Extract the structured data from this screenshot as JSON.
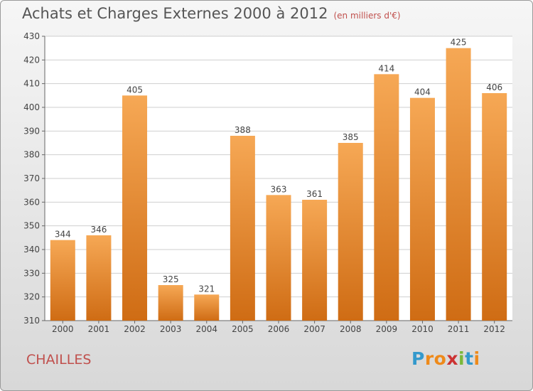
{
  "title": "Achats et Charges Externes 2000 à 2012",
  "subtitle": "(en milliers d'€)",
  "city": "CHAILLES",
  "logo": {
    "letters": [
      "P",
      "r",
      "o",
      "x",
      "i",
      "t",
      "i"
    ],
    "colors": [
      "#3399cc",
      "#ee8a1a",
      "#ee8a1a",
      "#cc3333",
      "#7ab83a",
      "#3399cc",
      "#ee8a1a"
    ]
  },
  "colors": {
    "bar_top": "#f6a855",
    "bar_bottom": "#cf6c14",
    "grid": "#cfcfcf",
    "axis": "#666666"
  },
  "chart_data": {
    "type": "bar",
    "title": "Achats et Charges Externes 2000 à 2012",
    "subtitle": "(en milliers d'€)",
    "categories": [
      "2000",
      "2001",
      "2002",
      "2003",
      "2004",
      "2005",
      "2006",
      "2007",
      "2008",
      "2009",
      "2010",
      "2011",
      "2012"
    ],
    "values": [
      344,
      346,
      405,
      325,
      321,
      388,
      363,
      361,
      385,
      414,
      404,
      425,
      406
    ],
    "ylim": [
      310,
      430
    ],
    "yticks": [
      310,
      320,
      330,
      340,
      350,
      360,
      370,
      380,
      390,
      400,
      410,
      420,
      430
    ],
    "grid": true,
    "data_labels": true
  }
}
